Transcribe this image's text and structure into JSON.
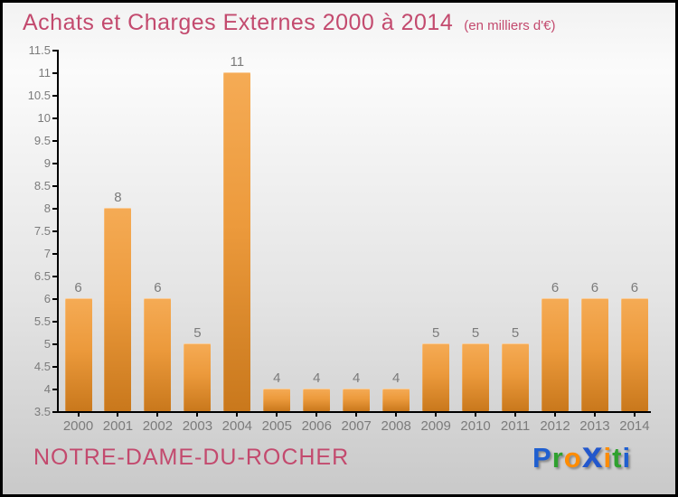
{
  "header": {
    "title": "Achats et Charges Externes 2000 à 2014",
    "subtitle": "(en milliers d'€)"
  },
  "footer": {
    "commune": "NOTRE-DAME-DU-ROCHER"
  },
  "logo": {
    "name": "Proxiti",
    "letters": [
      {
        "char": "P",
        "color": "#1f5fd0",
        "big": false
      },
      {
        "char": "r",
        "color": "#2fa12f",
        "big": false
      },
      {
        "char": "o",
        "color": "#ff8c00",
        "big": false
      },
      {
        "char": "x",
        "color": "#2257cc",
        "big": true
      },
      {
        "char": "i",
        "color": "#ff8c00",
        "big": false
      },
      {
        "char": "t",
        "color": "#2fa12f",
        "big": false
      },
      {
        "char": "i",
        "color": "#1f5fd0",
        "big": false
      }
    ]
  },
  "colors": {
    "title_pink": "#c34a6e",
    "label_gray": "#7b7b7b",
    "axis_black": "#000000",
    "bar_top": "#f5ab55",
    "bar_bottom": "#c9781c",
    "bg_bottom": "#c9c9c9"
  },
  "chart_data": {
    "type": "bar",
    "title": "Achats et Charges Externes 2000 à 2014",
    "subtitle": "(en milliers d'€)",
    "categories": [
      "2000",
      "2001",
      "2002",
      "2003",
      "2004",
      "2005",
      "2006",
      "2007",
      "2008",
      "2009",
      "2010",
      "2011",
      "2012",
      "2013",
      "2014"
    ],
    "values": [
      6,
      8,
      6,
      5,
      11,
      4,
      4,
      4,
      4,
      5,
      5,
      5,
      6,
      6,
      6
    ],
    "bar_value_labels": [
      "6",
      "8",
      "6",
      "5",
      "11",
      "4",
      "4",
      "4",
      "4",
      "5",
      "5",
      "5",
      "6",
      "6",
      "6"
    ],
    "xlabel": "",
    "ylabel": "",
    "ylim": [
      3.5,
      11.5
    ],
    "ytick_step": 0.5,
    "yticks": [
      "3.5",
      "4",
      "4.5",
      "5",
      "5.5",
      "6",
      "6.5",
      "7",
      "7.5",
      "8",
      "8.5",
      "9",
      "9.5",
      "10",
      "10.5",
      "11",
      "11.5"
    ],
    "grid": false,
    "legend": null,
    "bar_color": "orange gradient"
  }
}
